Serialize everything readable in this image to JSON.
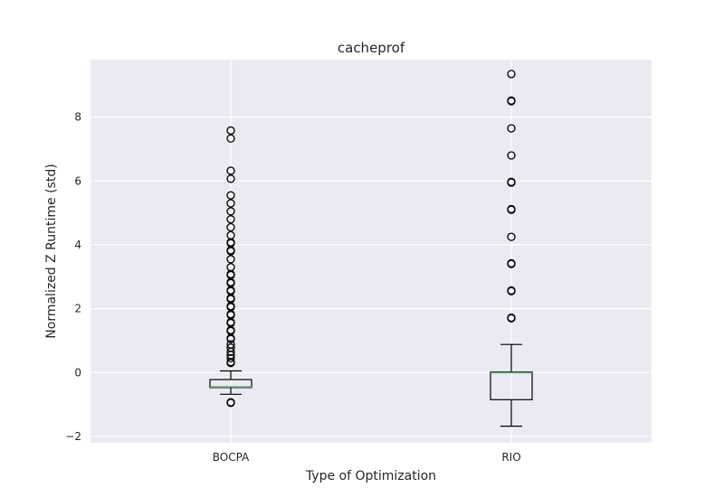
{
  "chart_data": {
    "type": "boxplot",
    "title": "cacheprof",
    "xlabel": "Type of Optimization",
    "ylabel": "Normalized Z Runtime (std)",
    "ylim": [
      -2.2,
      9.8
    ],
    "yticks": [
      -2,
      0,
      2,
      4,
      6,
      8
    ],
    "ytick_labels": [
      "−2",
      "0",
      "2",
      "4",
      "6",
      "8"
    ],
    "grid": true,
    "colors": {
      "plot_background": "#eaeaf2",
      "grid": "#ffffff",
      "box": "#000000",
      "median": "#5f9e6e",
      "flier": "#000000"
    },
    "categories": [
      "BOCPA",
      "RIO"
    ],
    "series": [
      {
        "name": "BOCPA",
        "whisker_low": -0.68,
        "q1": -0.47,
        "median": -0.45,
        "q3": -0.22,
        "whisker_high": 0.05,
        "outliers": [
          -0.95,
          -0.93,
          0.3,
          0.33,
          0.45,
          0.55,
          0.65,
          0.78,
          0.88,
          1.05,
          1.08,
          1.3,
          1.33,
          1.55,
          1.58,
          1.8,
          1.83,
          2.05,
          2.08,
          2.3,
          2.33,
          2.55,
          2.58,
          2.8,
          2.83,
          3.05,
          3.08,
          3.3,
          3.55,
          3.8,
          3.83,
          4.05,
          4.08,
          4.3,
          4.55,
          4.8,
          5.05,
          5.3,
          5.55,
          6.07,
          6.32,
          7.33,
          7.58
        ]
      },
      {
        "name": "RIO",
        "whisker_low": -1.68,
        "q1": -0.85,
        "median": 0.0,
        "q3": 0.02,
        "whisker_high": 0.88,
        "outliers": [
          1.7,
          1.72,
          2.55,
          2.57,
          3.4,
          3.42,
          4.25,
          5.1,
          5.12,
          5.95,
          5.97,
          6.8,
          7.65,
          8.5,
          8.52,
          9.35
        ]
      }
    ]
  }
}
